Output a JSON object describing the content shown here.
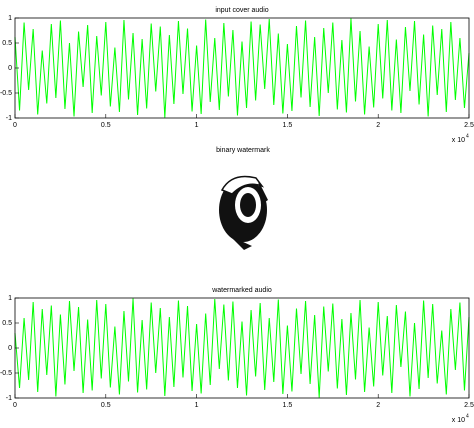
{
  "chart_data": [
    {
      "type": "line",
      "title": "input cover audio",
      "x": [
        0,
        0.025,
        0.05,
        0.075,
        0.1,
        0.125,
        0.15,
        0.175,
        0.2,
        0.225,
        0.25,
        0.275,
        0.3,
        0.325,
        0.35,
        0.375,
        0.4,
        0.425,
        0.45,
        0.475,
        0.5,
        0.525,
        0.55,
        0.575,
        0.6,
        0.625,
        0.65,
        0.675,
        0.7,
        0.725,
        0.75,
        0.775,
        0.8,
        0.825,
        0.85,
        0.875,
        0.9,
        0.925,
        0.95,
        0.975,
        1,
        1.025,
        1.05,
        1.075,
        1.1,
        1.125,
        1.15,
        1.175,
        1.2,
        1.225,
        1.25,
        1.275,
        1.3,
        1.325,
        1.35,
        1.375,
        1.4,
        1.425,
        1.45,
        1.475,
        1.5,
        1.525,
        1.55,
        1.575,
        1.6,
        1.625,
        1.65,
        1.675,
        1.7,
        1.725,
        1.75,
        1.775,
        1.8,
        1.825,
        1.85,
        1.875,
        1.9,
        1.925,
        1.95,
        1.975,
        2,
        2.025,
        2.05,
        2.075,
        2.1,
        2.125,
        2.15,
        2.175,
        2.2,
        2.225,
        2.25,
        2.275,
        2.3,
        2.325,
        2.35,
        2.375,
        2.4,
        2.425,
        2.45,
        2.475,
        2.5
      ],
      "series": [
        {
          "color": "#00ff00",
          "values": [
            0.62,
            -0.85,
            0.91,
            -0.44,
            0.78,
            -0.93,
            0.35,
            -0.71,
            0.88,
            -0.6,
            0.95,
            -0.82,
            0.5,
            -0.97,
            0.73,
            -0.38,
            0.86,
            -0.9,
            0.64,
            -0.55,
            0.92,
            -0.77,
            0.41,
            -0.88,
            0.96,
            -0.63,
            0.7,
            -0.94,
            0.58,
            -0.81,
            0.89,
            -0.47,
            0.83,
            -0.99,
            0.66,
            -0.72,
            0.94,
            -0.52,
            0.79,
            -0.87,
            0.45,
            -0.92,
            0.97,
            -0.68,
            0.6,
            -0.84,
            0.9,
            -0.57,
            0.76,
            -0.95,
            0.53,
            -0.8,
            0.93,
            -0.65,
            0.87,
            -0.42,
            0.98,
            -0.74,
            0.69,
            -0.91,
            0.48,
            -0.86,
            0.84,
            -0.59,
            0.95,
            -0.78,
            0.62,
            -0.96,
            0.8,
            -0.5,
            0.91,
            -0.83,
            0.56,
            -0.89,
            0.99,
            -0.67,
            0.74,
            -0.93,
            0.43,
            -0.79,
            0.88,
            -0.61,
            0.96,
            -0.85,
            0.57,
            -0.9,
            0.82,
            -0.46,
            0.94,
            -0.73,
            0.67,
            -0.97,
            0.85,
            -0.54,
            0.78,
            -0.88,
            0.92,
            -0.64,
            0.6,
            -0.8,
            0.3
          ]
        }
      ],
      "xlim": [
        0,
        2.5
      ],
      "xticks": [
        0,
        0.5,
        1,
        1.5,
        2,
        2.5
      ],
      "ylim": [
        -1,
        1
      ],
      "yticks": [
        -1,
        -0.5,
        0,
        0.5,
        1
      ],
      "x_scale_base": "x 10",
      "x_scale_exponent": "4"
    },
    {
      "type": "line",
      "title": "watermarked audio",
      "x": [
        0,
        0.025,
        0.05,
        0.075,
        0.1,
        0.125,
        0.15,
        0.175,
        0.2,
        0.225,
        0.25,
        0.275,
        0.3,
        0.325,
        0.35,
        0.375,
        0.4,
        0.425,
        0.45,
        0.475,
        0.5,
        0.525,
        0.55,
        0.575,
        0.6,
        0.625,
        0.65,
        0.675,
        0.7,
        0.725,
        0.75,
        0.775,
        0.8,
        0.825,
        0.85,
        0.875,
        0.9,
        0.925,
        0.95,
        0.975,
        1,
        1.025,
        1.05,
        1.075,
        1.1,
        1.125,
        1.15,
        1.175,
        1.2,
        1.225,
        1.25,
        1.275,
        1.3,
        1.325,
        1.35,
        1.375,
        1.4,
        1.425,
        1.45,
        1.475,
        1.5,
        1.525,
        1.55,
        1.575,
        1.6,
        1.625,
        1.65,
        1.675,
        1.7,
        1.725,
        1.75,
        1.775,
        1.8,
        1.825,
        1.85,
        1.875,
        1.9,
        1.925,
        1.95,
        1.975,
        2,
        2.025,
        2.05,
        2.075,
        2.1,
        2.125,
        2.15,
        2.175,
        2.2,
        2.225,
        2.25,
        2.275,
        2.3,
        2.325,
        2.35,
        2.375,
        2.4,
        2.425,
        2.45,
        2.475,
        2.5
      ],
      "series": [
        {
          "color": "#00ff00",
          "values": [
            0.3,
            -0.8,
            0.6,
            -0.64,
            0.92,
            -0.88,
            0.78,
            -0.54,
            0.85,
            -0.97,
            0.67,
            -0.73,
            0.94,
            -0.46,
            0.82,
            -0.9,
            0.57,
            -0.85,
            0.96,
            -0.61,
            0.88,
            -0.79,
            0.43,
            -0.93,
            0.74,
            -0.67,
            0.99,
            -0.89,
            0.56,
            -0.83,
            0.91,
            -0.5,
            0.8,
            -0.96,
            0.62,
            -0.78,
            0.95,
            -0.59,
            0.84,
            -0.86,
            0.48,
            -0.91,
            0.69,
            -0.74,
            0.98,
            -0.42,
            0.87,
            -0.65,
            0.93,
            -0.8,
            0.53,
            -0.95,
            0.76,
            -0.57,
            0.9,
            -0.84,
            0.6,
            -0.68,
            0.97,
            -0.92,
            0.45,
            -0.87,
            0.79,
            -0.52,
            0.94,
            -0.72,
            0.66,
            -0.99,
            0.83,
            -0.47,
            0.89,
            -0.81,
            0.58,
            -0.94,
            0.7,
            -0.63,
            0.96,
            -0.88,
            0.41,
            -0.77,
            0.92,
            -0.55,
            0.64,
            -0.9,
            0.86,
            -0.38,
            0.73,
            -0.97,
            0.5,
            -0.82,
            0.95,
            -0.6,
            0.88,
            -0.71,
            0.35,
            -0.93,
            0.78,
            -0.44,
            0.91,
            -0.85,
            0.62
          ]
        }
      ],
      "xlim": [
        0,
        2.5
      ],
      "xticks": [
        0,
        0.5,
        1,
        1.5,
        2,
        2.5
      ],
      "ylim": [
        -1,
        1
      ],
      "yticks": [
        -1,
        -0.5,
        0,
        0.5,
        1
      ],
      "x_scale_base": "x 10",
      "x_scale_exponent": "4"
    }
  ],
  "watermark": {
    "title": "binary watermark"
  }
}
